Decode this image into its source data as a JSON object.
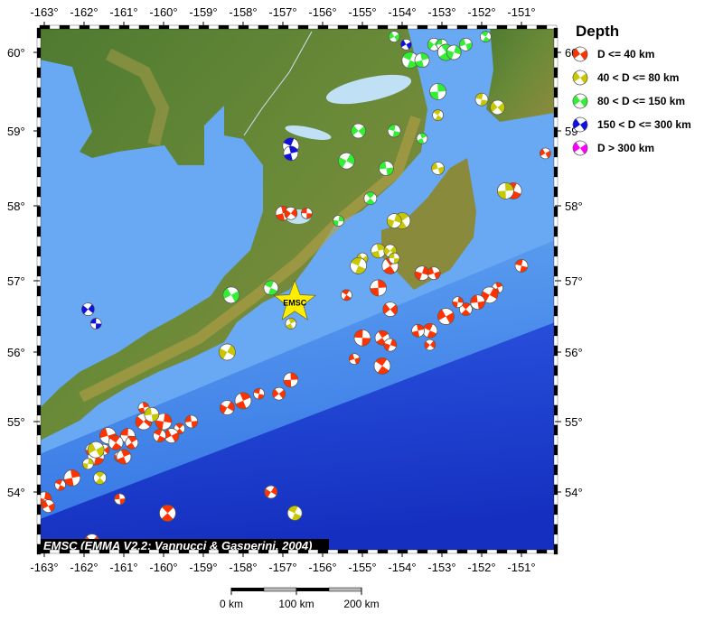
{
  "map": {
    "lon_ticks": [
      -163,
      -162,
      -161,
      -160,
      -159,
      -158,
      -157,
      -156,
      -155,
      -154,
      -153,
      -152,
      -151
    ],
    "lon_labels": [
      "-163°",
      "-162°",
      "-161°",
      "-160°",
      "-159°",
      "-158°",
      "-157°",
      "-156°",
      "-155°",
      "-154°",
      "-153°",
      "-152°",
      "-151°"
    ],
    "lat_ticks": [
      60,
      59,
      58,
      57,
      56,
      55,
      54
    ],
    "lat_labels": [
      "60°",
      "59°",
      "58°",
      "57°",
      "56°",
      "55°",
      "54°"
    ],
    "colors": {
      "land": "#4f7a2e",
      "highland": "#b59a45",
      "shelf": "#69a8f2",
      "slope": "#4a8fe8",
      "deep": "#1f45d6",
      "lake": "#bfe0f5"
    },
    "credit": "EMSC (EMMA V2.2; Vannucci & Gasperini, 2004)",
    "epicenter": {
      "label": "EMSC",
      "lon": -156.7,
      "lat": 56.7,
      "color": "#ffee00"
    }
  },
  "legend": {
    "title": "Depth",
    "items": [
      {
        "label": "D <= 40 km",
        "color": "#ff3300",
        "class": "shallow"
      },
      {
        "label": "40 < D <= 80 km",
        "color": "#c8c800",
        "class": "d40"
      },
      {
        "label": "80 < D <= 150 km",
        "color": "#33ee33",
        "class": "d80"
      },
      {
        "label": "150 < D <= 300 km",
        "color": "#1111dd",
        "class": "d150"
      },
      {
        "label": "D > 300 km",
        "color": "#ff00ff",
        "class": "d300"
      }
    ]
  },
  "scale_bar": {
    "labels": [
      "0 km",
      "100 km",
      "200 km"
    ]
  },
  "events": {
    "shallow": [
      [
        -150.4,
        58.7
      ],
      [
        -151.2,
        58.2
      ],
      [
        -157.0,
        57.9
      ],
      [
        -156.8,
        57.9
      ],
      [
        -156.4,
        57.9
      ],
      [
        -154.3,
        57.2
      ],
      [
        -153.5,
        57.1
      ],
      [
        -153.2,
        57.1
      ],
      [
        -155.4,
        56.8
      ],
      [
        -154.6,
        56.9
      ],
      [
        -154.3,
        56.6
      ],
      [
        -151.0,
        57.2
      ],
      [
        -151.6,
        56.9
      ],
      [
        -151.8,
        56.8
      ],
      [
        -152.1,
        56.7
      ],
      [
        -152.4,
        56.6
      ],
      [
        -152.6,
        56.7
      ],
      [
        -152.9,
        56.5
      ],
      [
        -153.3,
        56.3
      ],
      [
        -153.6,
        56.3
      ],
      [
        -153.3,
        56.1
      ],
      [
        -155.0,
        56.2
      ],
      [
        -154.5,
        56.2
      ],
      [
        -154.3,
        56.1
      ],
      [
        -155.2,
        55.9
      ],
      [
        -154.5,
        55.8
      ],
      [
        -156.8,
        55.6
      ],
      [
        -157.1,
        55.4
      ],
      [
        -157.6,
        55.4
      ],
      [
        -158.0,
        55.3
      ],
      [
        -158.4,
        55.2
      ],
      [
        -159.3,
        55.0
      ],
      [
        -159.6,
        54.9
      ],
      [
        -160.0,
        55.0
      ],
      [
        -159.8,
        54.8
      ],
      [
        -160.1,
        54.8
      ],
      [
        -160.5,
        55.2
      ],
      [
        -160.5,
        55.0
      ],
      [
        -160.9,
        54.8
      ],
      [
        -160.8,
        54.7
      ],
      [
        -161.1,
        54.5
      ],
      [
        -161.4,
        54.8
      ],
      [
        -161.2,
        54.7
      ],
      [
        -161.8,
        54.6
      ],
      [
        -161.5,
        54.6
      ],
      [
        -161.7,
        54.5
      ],
      [
        -161.0,
        54.5
      ],
      [
        -157.3,
        54.0
      ],
      [
        -161.1,
        53.9
      ],
      [
        -159.9,
        53.7
      ],
      [
        -163.0,
        53.9
      ],
      [
        -162.9,
        53.8
      ],
      [
        -162.6,
        54.1
      ],
      [
        -162.3,
        54.2
      ],
      [
        -161.8,
        53.3
      ]
    ],
    "d40": [
      [
        -155.0,
        57.3
      ],
      [
        -155.1,
        57.2
      ],
      [
        -154.6,
        57.4
      ],
      [
        -154.3,
        57.4
      ],
      [
        -154.2,
        57.3
      ],
      [
        -154.0,
        57.8
      ],
      [
        -154.2,
        57.8
      ],
      [
        -153.1,
        58.5
      ],
      [
        -153.1,
        59.2
      ],
      [
        -151.4,
        58.2
      ],
      [
        -151.6,
        59.3
      ],
      [
        -152.0,
        59.4
      ],
      [
        -156.8,
        56.4
      ],
      [
        -158.4,
        56.0
      ],
      [
        -160.3,
        55.1
      ],
      [
        -161.6,
        54.2
      ],
      [
        -161.9,
        54.4
      ],
      [
        -161.7,
        54.6
      ],
      [
        -156.7,
        53.7
      ]
    ],
    "d80": [
      [
        -154.2,
        60.2
      ],
      [
        -153.8,
        59.9
      ],
      [
        -153.5,
        59.9
      ],
      [
        -153.2,
        60.1
      ],
      [
        -153.0,
        60.1
      ],
      [
        -152.9,
        60.0
      ],
      [
        -152.7,
        60.0
      ],
      [
        -152.4,
        60.1
      ],
      [
        -151.9,
        60.2
      ],
      [
        -153.1,
        59.5
      ],
      [
        -155.1,
        59.0
      ],
      [
        -154.2,
        59.0
      ],
      [
        -153.5,
        58.9
      ],
      [
        -155.4,
        58.6
      ],
      [
        -154.4,
        58.5
      ],
      [
        -154.8,
        58.1
      ],
      [
        -155.6,
        57.8
      ],
      [
        -158.3,
        56.8
      ],
      [
        -157.3,
        56.9
      ]
    ],
    "d150": [
      [
        -153.9,
        60.1
      ],
      [
        -156.8,
        58.8
      ],
      [
        -156.8,
        58.7
      ],
      [
        -161.9,
        56.6
      ],
      [
        -161.7,
        56.4
      ]
    ],
    "d300": []
  }
}
